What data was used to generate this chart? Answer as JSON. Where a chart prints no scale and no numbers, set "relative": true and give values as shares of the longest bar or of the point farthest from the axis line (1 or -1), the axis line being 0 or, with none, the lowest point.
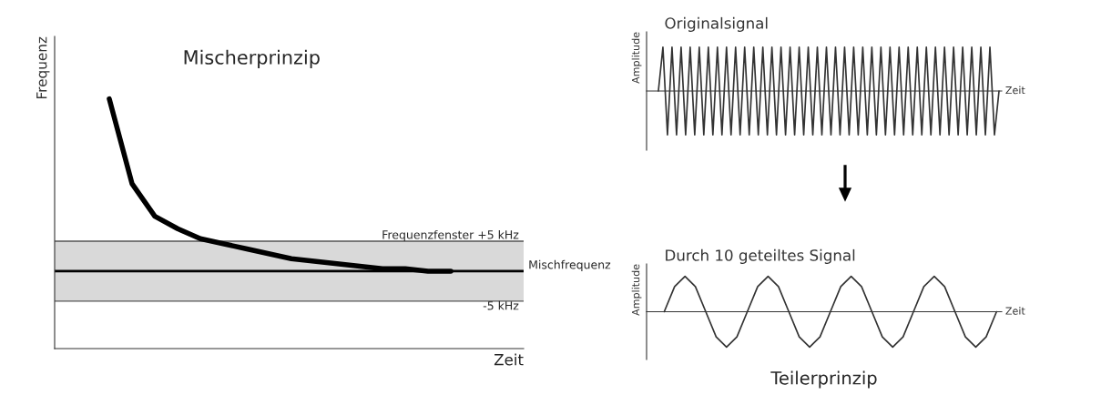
{
  "chart_data": [
    {
      "type": "line",
      "title": "Mischerprinzip",
      "ylabel": "Frequenz",
      "xlabel": "Zeit",
      "relative": true,
      "categories": [
        null,
        null,
        null,
        null,
        null,
        null,
        null,
        null,
        null,
        null,
        null,
        null,
        null,
        null,
        null,
        null
      ],
      "series": [
        {
          "color": "#000000",
          "values": [
            1,
            0.66,
            0.53,
            0.48,
            0.44,
            0.42,
            0.4,
            0.38,
            0.36,
            0.35,
            0.34,
            0.33,
            0.32,
            0.32,
            0.31,
            0.31
          ]
        }
      ],
      "ref_lines": [
        {
          "axis": "y",
          "value": 0.43,
          "label": "Frequenzfenster +5 kHz",
          "color": "#555555"
        },
        {
          "axis": "y",
          "value": 0.31,
          "label": "Mischfrequenz",
          "color": "#000000"
        },
        {
          "axis": "y",
          "value": 0.19,
          "label": "-5 kHz",
          "color": "#555555"
        }
      ],
      "bands": [
        {
          "axis": "y",
          "from": 0.19,
          "to": 0.43,
          "color": "#d9d9d9"
        }
      ]
    },
    {
      "type": "line",
      "title": "Originalsignal",
      "ylabel": "Amplitude",
      "xlabel": "Zeit",
      "relative": true,
      "categories": [
        null,
        null,
        null,
        null,
        null,
        null,
        null,
        null,
        null,
        null,
        null,
        null,
        null,
        null,
        null,
        null,
        null,
        null,
        null,
        null,
        null,
        null,
        null,
        null,
        null,
        null,
        null,
        null,
        null,
        null,
        null,
        null,
        null,
        null,
        null,
        null,
        null,
        null,
        null,
        null,
        null,
        null,
        null,
        null,
        null,
        null,
        null,
        null,
        null,
        null,
        null,
        null,
        null,
        null,
        null,
        null,
        null,
        null,
        null,
        null,
        null,
        null,
        null,
        null,
        null,
        null,
        null,
        null,
        null,
        null,
        null,
        null,
        null,
        null,
        null,
        null
      ],
      "series": [
        {
          "color": "#333333",
          "values": [
            0,
            1,
            -1,
            1,
            -1,
            1,
            -1,
            1,
            -1,
            1,
            -1,
            1,
            -1,
            1,
            -1,
            1,
            -1,
            1,
            -1,
            1,
            -1,
            1,
            -1,
            1,
            -1,
            1,
            -1,
            1,
            -1,
            1,
            -1,
            1,
            -1,
            1,
            -1,
            1,
            -1,
            1,
            -1,
            1,
            -1,
            1,
            -1,
            1,
            -1,
            1,
            -1,
            1,
            -1,
            1,
            -1,
            1,
            -1,
            1,
            -1,
            1,
            -1,
            1,
            -1,
            1,
            -1,
            1,
            -1,
            1,
            -1,
            1,
            -1,
            1,
            -1,
            1,
            -1,
            1,
            -1,
            1,
            -1,
            0
          ]
        }
      ]
    },
    {
      "type": "line",
      "title": "Durch 10 geteiltes Signal",
      "ylabel": "Amplitude",
      "xlabel": "Zeit",
      "relative": true,
      "annotations": [
        "Teilerprinzip"
      ],
      "categories": [
        null,
        null,
        null,
        null,
        null,
        null,
        null,
        null,
        null,
        null,
        null,
        null,
        null,
        null,
        null,
        null,
        null,
        null,
        null,
        null,
        null,
        null,
        null,
        null,
        null,
        null,
        null,
        null,
        null,
        null,
        null,
        null,
        null
      ],
      "series": [
        {
          "color": "#333333",
          "values": [
            0,
            0.71,
            1,
            0.71,
            0,
            -0.71,
            -1,
            -0.71,
            0,
            0.71,
            1,
            0.71,
            0,
            -0.71,
            -1,
            -0.71,
            0,
            0.71,
            1,
            0.71,
            0,
            -0.71,
            -1,
            -0.71,
            0,
            0.71,
            1,
            0.71,
            0,
            -0.71,
            -1,
            -0.71,
            0
          ]
        }
      ]
    }
  ]
}
